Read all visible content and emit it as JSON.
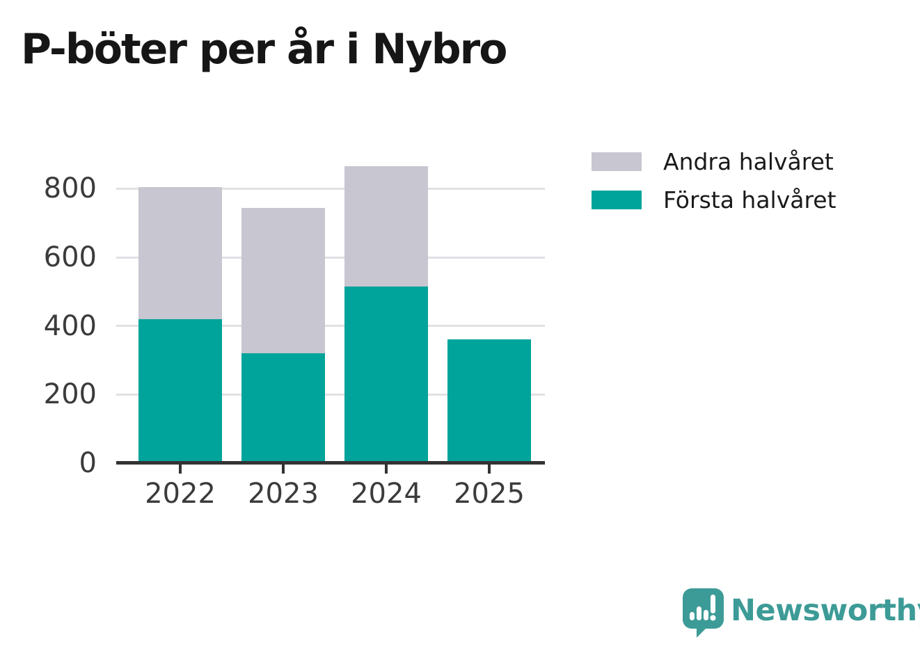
{
  "title": "P-böter per år i Nybro",
  "colors": {
    "first_half": "#00a49b",
    "second_half": "#c8c6d0",
    "gridline": "#e1e1e4",
    "axis": "#333333",
    "tick_text": "#3b3b3b",
    "title_text": "#161616",
    "brand_teal": "#3d9b97"
  },
  "legend": {
    "items": [
      {
        "label": "Andra halvåret",
        "color": "#c8c6d0"
      },
      {
        "label": "Första halvåret",
        "color": "#00a49b"
      }
    ]
  },
  "chart_data": {
    "type": "bar",
    "stacked": true,
    "title": "P-böter per år i Nybro",
    "categories": [
      "2022",
      "2023",
      "2024",
      "2025"
    ],
    "series": [
      {
        "name": "Första halvåret",
        "color": "#00a49b",
        "values": [
          420,
          320,
          515,
          360
        ]
      },
      {
        "name": "Andra halvåret",
        "color": "#c8c6d0",
        "values": [
          385,
          425,
          350,
          0
        ]
      }
    ],
    "totals": [
      805,
      745,
      865,
      360
    ],
    "xlabel": "",
    "ylabel": "",
    "ylim": [
      0,
      884
    ],
    "yticks": [
      0,
      200,
      400,
      600,
      800
    ],
    "grid": true,
    "legend_position": "right"
  },
  "branding": {
    "name": "Newsworthy",
    "icon": "newsworthy-speech-bubble-chart-icon"
  }
}
